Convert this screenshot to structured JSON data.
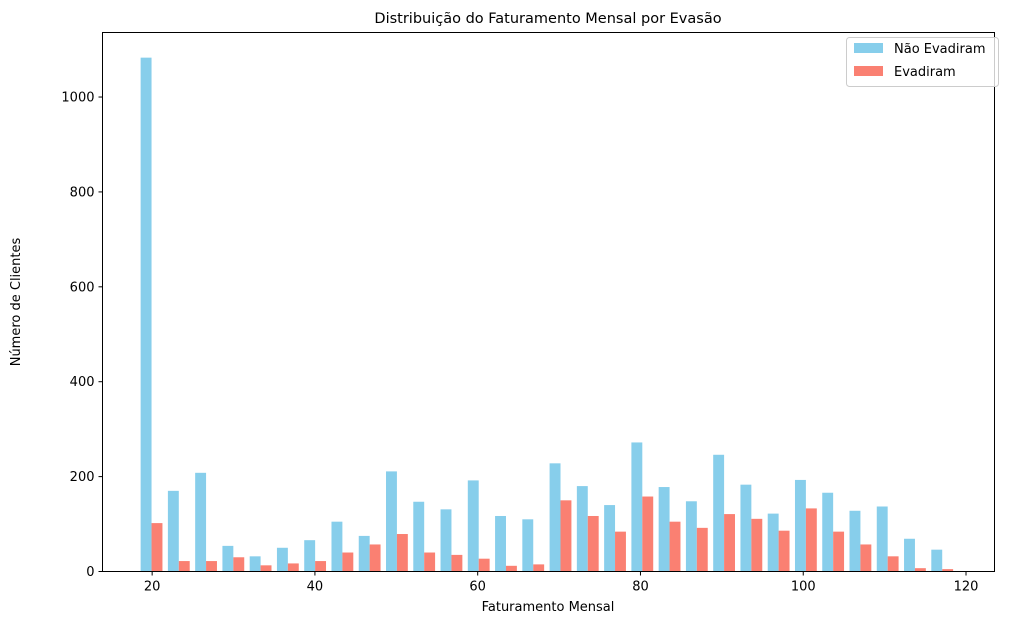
{
  "chart_data": {
    "type": "bar",
    "title": "Distribuição do Faturamento Mensal por Evasão",
    "xlabel": "Faturamento Mensal",
    "ylabel": "Número de Clientes",
    "xlim": [
      13.9,
      123.5
    ],
    "ylim": [
      0,
      1136
    ],
    "x_ticks": [
      20,
      40,
      60,
      80,
      100,
      120
    ],
    "x_tick_labels": [
      "20",
      "40",
      "60",
      "80",
      "100",
      "120"
    ],
    "y_ticks": [
      0,
      200,
      400,
      600,
      800,
      1000
    ],
    "y_tick_labels": [
      "0",
      "200",
      "400",
      "600",
      "800",
      "1000"
    ],
    "bin_edges": [
      18.25,
      21.6,
      24.95,
      28.3,
      31.65,
      35.0,
      38.35,
      41.7,
      45.05,
      48.4,
      51.75,
      55.1,
      58.45,
      61.8,
      65.15,
      68.5,
      71.85,
      75.2,
      78.55,
      81.9,
      85.25,
      88.6,
      91.95,
      95.3,
      98.65,
      102.0,
      105.35,
      108.7,
      112.05,
      115.4,
      118.75
    ],
    "legend_position": "top-right",
    "grid": false,
    "series": [
      {
        "name": "Não Evadiram",
        "color": "#87ceeb",
        "values": [
          1083,
          170,
          208,
          54,
          32,
          50,
          66,
          105,
          75,
          211,
          147,
          131,
          192,
          117,
          110,
          228,
          180,
          140,
          272,
          178,
          148,
          246,
          183,
          122,
          193,
          166,
          128,
          137,
          69,
          46
        ]
      },
      {
        "name": "Evadiram",
        "color": "#fa8072",
        "values": [
          102,
          22,
          22,
          30,
          13,
          17,
          22,
          40,
          57,
          79,
          40,
          35,
          27,
          12,
          15,
          150,
          117,
          84,
          158,
          105,
          92,
          121,
          111,
          86,
          133,
          84,
          57,
          32,
          7,
          5
        ]
      }
    ]
  }
}
